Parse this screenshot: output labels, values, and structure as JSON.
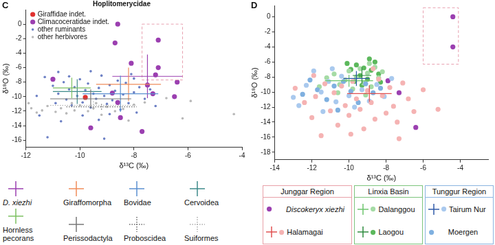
{
  "chart_data": [
    {
      "type": "scatter",
      "panel_label": "C",
      "title": "Hoplitomerycidae",
      "x_label": "δ¹³C (‰)",
      "y_label": "δ¹⁸O (‰)",
      "xlim": [
        -12,
        -4
      ],
      "xticks": [
        -12,
        -10,
        -8,
        -6,
        -4
      ],
      "ylim": [
        -17,
        2
      ],
      "yticks": [
        -16,
        -14,
        -12,
        -10,
        -8,
        -6,
        -4,
        -2,
        0
      ],
      "grid": false,
      "legend": "top left",
      "series": [
        {
          "name": "Giraffidae indet.",
          "color": "#e0312f",
          "marker": "circle",
          "points": [
            [
              -9.8,
              -10.1
            ]
          ]
        },
        {
          "name": "Climacoceratidae indet.",
          "color": "#9b3fb0",
          "marker": "circle",
          "points": [
            [
              -8.6,
              0.0
            ],
            [
              -8.7,
              -2.6
            ],
            [
              -8.1,
              -5.4
            ],
            [
              -7.1,
              -2.2
            ],
            [
              -7.1,
              -6.0
            ],
            [
              -7.5,
              -8.4
            ],
            [
              -7.3,
              -9.6
            ],
            [
              -6.4,
              -8.0
            ],
            [
              -6.5,
              -10.0
            ],
            [
              -7.7,
              -14.8
            ],
            [
              -8.5,
              -12.9
            ],
            [
              -9.6,
              -14.3
            ],
            [
              -11.0,
              -7.6
            ],
            [
              -8.8,
              -9.5
            ],
            [
              -8.6,
              -10.8
            ],
            [
              -7.2,
              -7.0
            ]
          ]
        },
        {
          "name": "other ruminants",
          "color": "#6b7fc4",
          "marker": "dot",
          "points": [
            [
              -11.3,
              -7.3
            ],
            [
              -11.0,
              -8.5
            ],
            [
              -10.8,
              -9.6
            ],
            [
              -10.6,
              -8.0
            ],
            [
              -10.5,
              -10.4
            ],
            [
              -10.4,
              -9.0
            ],
            [
              -10.3,
              -11.2
            ],
            [
              -10.2,
              -8.7
            ],
            [
              -10.1,
              -9.9
            ],
            [
              -10.0,
              -7.6
            ],
            [
              -9.9,
              -10.8
            ],
            [
              -9.8,
              -9.1
            ],
            [
              -9.7,
              -8.2
            ],
            [
              -9.6,
              -11.5
            ],
            [
              -9.5,
              -9.6
            ],
            [
              -9.4,
              -10.3
            ],
            [
              -9.3,
              -8.8
            ],
            [
              -9.2,
              -7.1
            ],
            [
              -9.1,
              -9.9
            ],
            [
              -9.0,
              -11.0
            ],
            [
              -8.9,
              -8.4
            ],
            [
              -8.8,
              -10.5
            ],
            [
              -8.7,
              -9.2
            ],
            [
              -8.6,
              -7.8
            ],
            [
              -8.5,
              -11.8
            ],
            [
              -8.4,
              -9.7
            ],
            [
              -8.3,
              -8.1
            ],
            [
              -8.2,
              -10.9
            ],
            [
              -8.1,
              -6.9
            ],
            [
              -8.0,
              -9.4
            ],
            [
              -7.9,
              -12.2
            ],
            [
              -7.8,
              -8.7
            ],
            [
              -7.6,
              -10.3
            ],
            [
              -7.4,
              -9.0
            ],
            [
              -7.2,
              -11.3
            ],
            [
              -10.9,
              -10.9
            ],
            [
              -11.5,
              -12.6
            ],
            [
              -10.7,
              -13.4
            ],
            [
              -9.9,
              -12.6
            ],
            [
              -9.3,
              -13.2
            ],
            [
              -11.6,
              -9.9
            ],
            [
              -10.4,
              -7.2
            ],
            [
              -9.6,
              -6.5
            ],
            [
              -8.9,
              -12.4
            ],
            [
              -8.0,
              -7.5
            ],
            [
              -11.2,
              -15.6
            ],
            [
              -10.8,
              -6.6
            ],
            [
              -9.1,
              -15.8
            ]
          ]
        },
        {
          "name": "other herbivores",
          "color": "#b8b8b8",
          "marker": "dot",
          "points": [
            [
              -11.8,
              -11.6
            ],
            [
              -11.6,
              -12.2
            ],
            [
              -11.4,
              -11.9
            ],
            [
              -11.2,
              -11.3
            ],
            [
              -10.9,
              -12.1
            ],
            [
              -10.7,
              -11.6
            ],
            [
              -10.5,
              -12.3
            ],
            [
              -10.2,
              -11.9
            ],
            [
              -10.0,
              -11.2
            ],
            [
              -9.7,
              -12.0
            ],
            [
              -9.5,
              -11.6
            ],
            [
              -9.2,
              -12.5
            ],
            [
              -9.0,
              -11.4
            ],
            [
              -8.7,
              -12.0
            ],
            [
              -8.4,
              -11.7
            ],
            [
              -8.0,
              -11.1
            ],
            [
              -7.6,
              -10.8
            ],
            [
              -6.8,
              -10.2
            ],
            [
              -5.9,
              -10.6
            ],
            [
              -4.3,
              -12.4
            ],
            [
              -6.2,
              -13.0
            ],
            [
              -11.9,
              -10.9
            ],
            [
              -10.3,
              -10.9
            ],
            [
              -9.4,
              -10.9
            ],
            [
              -8.2,
              -13.3
            ]
          ]
        }
      ],
      "crosses": [
        {
          "name": "D. xiezhi",
          "color": "#9b3fb0",
          "line_style": "solid",
          "x": -7.5,
          "y": -7.2,
          "xerr": 1.3,
          "yerr": 3.0
        },
        {
          "name": "Giraffomorpha",
          "color": "#f08c5a",
          "line_style": "solid",
          "x": -8.2,
          "y": -8.3,
          "xerr": 1.2,
          "yerr": 2.3
        },
        {
          "name": "Bovidae",
          "color": "#5a8fd0",
          "line_style": "solid",
          "x": -8.5,
          "y": -9.6,
          "xerr": 1.4,
          "yerr": 2.5
        },
        {
          "name": "Cervoidea",
          "color": "#3e8a8a",
          "line_style": "solid",
          "x": -10.1,
          "y": -9.3,
          "xerr": 0.9,
          "yerr": 1.7
        },
        {
          "name": "Hornless pecorans",
          "color": "#7cc060",
          "line_style": "solid",
          "x": -10.3,
          "y": -8.8,
          "xerr": 0.7,
          "yerr": 1.4
        },
        {
          "name": "Perissodactyla",
          "color": "#777777",
          "line_style": "solid",
          "x": -9.6,
          "y": -10.3,
          "xerr": 1.5,
          "yerr": 1.3
        },
        {
          "name": "Proboscidea",
          "color": "#666666",
          "line_style": "dotted",
          "x": -9.2,
          "y": -11.4,
          "xerr": 1.3,
          "yerr": 0.4
        },
        {
          "name": "Suiformes",
          "color": "#aaaaaa",
          "line_style": "dotted",
          "x": -9.5,
          "y": -11.2,
          "xerr": 1.6,
          "yerr": 0.6
        }
      ],
      "highlight_box": {
        "xlim": [
          -7.7,
          -6.2
        ],
        "ylim": [
          -7.7,
          0.0
        ],
        "color": "#e8a0b0",
        "line_style": "dashed"
      }
    },
    {
      "type": "scatter",
      "panel_label": "D",
      "x_label": "δ¹³C (‰)",
      "y_label": "δ¹⁸O (‰)",
      "xlim": [
        -14,
        -2.5
      ],
      "xticks": [
        -14,
        -12,
        -10,
        -8,
        -6,
        -4
      ],
      "ylim": [
        -19,
        1.5
      ],
      "yticks": [
        -18,
        -16,
        -14,
        -12,
        -10,
        -8,
        -6,
        -4,
        -2,
        0
      ],
      "grid": false,
      "series": [
        {
          "name": "Halamagai",
          "color": "#f5b3b3",
          "marker": "circle",
          "points": [
            [
              -12.9,
              -9.5
            ],
            [
              -12.4,
              -11.4
            ],
            [
              -12.0,
              -13.4
            ],
            [
              -11.8,
              -10.6
            ],
            [
              -11.5,
              -15.8
            ],
            [
              -11.3,
              -8.9
            ],
            [
              -11.0,
              -12.5
            ],
            [
              -10.8,
              -10.1
            ],
            [
              -10.6,
              -14.4
            ],
            [
              -10.4,
              -9.2
            ],
            [
              -10.2,
              -11.8
            ],
            [
              -10.0,
              -13.1
            ],
            [
              -9.8,
              -8.6
            ],
            [
              -9.6,
              -10.9
            ],
            [
              -9.4,
              -12.3
            ],
            [
              -9.2,
              -14.9
            ],
            [
              -9.0,
              -9.8
            ],
            [
              -8.8,
              -11.4
            ],
            [
              -8.6,
              -13.6
            ],
            [
              -8.4,
              -8.3
            ],
            [
              -8.2,
              -10.5
            ],
            [
              -8.0,
              -12.8
            ],
            [
              -7.8,
              -9.4
            ],
            [
              -7.6,
              -11.9
            ],
            [
              -7.4,
              -14.0
            ],
            [
              -7.1,
              -8.8
            ],
            [
              -6.8,
              -10.9
            ],
            [
              -6.5,
              -12.6
            ],
            [
              -6.0,
              -9.7
            ],
            [
              -5.2,
              -12.3
            ],
            [
              -9.9,
              -15.6
            ],
            [
              -11.9,
              -7.8
            ],
            [
              -8.7,
              -6.9
            ],
            [
              -7.3,
              -16.2
            ]
          ]
        },
        {
          "name": "Tairum Nur",
          "color": "#a9c9ee",
          "marker": "circle",
          "points": [
            [
              -13.0,
              -10.7
            ],
            [
              -12.3,
              -9.1
            ],
            [
              -11.9,
              -7.2
            ],
            [
              -11.5,
              -10.0
            ],
            [
              -11.1,
              -8.6
            ],
            [
              -10.7,
              -11.3
            ],
            [
              -10.4,
              -7.9
            ],
            [
              -10.0,
              -10.5
            ],
            [
              -9.7,
              -12.0
            ],
            [
              -9.3,
              -9.7
            ],
            [
              -8.9,
              -11.2
            ],
            [
              -8.5,
              -9.0
            ],
            [
              -8.1,
              -10.6
            ],
            [
              -7.7,
              -8.2
            ],
            [
              -11.4,
              -12.6
            ],
            [
              -12.7,
              -11.8
            ],
            [
              -10.9,
              -6.9
            ]
          ]
        },
        {
          "name": "Moergen",
          "color": "#7fb0e0",
          "marker": "circle",
          "points": [
            [
              -12.1,
              -8.4
            ],
            [
              -11.7,
              -9.7
            ],
            [
              -11.2,
              -11.0
            ],
            [
              -10.8,
              -9.2
            ],
            [
              -10.3,
              -8.6
            ],
            [
              -9.9,
              -9.9
            ],
            [
              -9.5,
              -11.4
            ],
            [
              -9.1,
              -8.9
            ],
            [
              -8.7,
              -10.1
            ],
            [
              -8.3,
              -9.5
            ],
            [
              -10.6,
              -12.4
            ],
            [
              -12.5,
              -10.3
            ]
          ]
        },
        {
          "name": "Dalanggou",
          "color": "#a5dba5",
          "marker": "circle",
          "points": [
            [
              -11.2,
              -8.1
            ],
            [
              -10.8,
              -7.6
            ],
            [
              -10.5,
              -9.0
            ],
            [
              -10.2,
              -8.4
            ],
            [
              -10.0,
              -7.2
            ],
            [
              -9.8,
              -9.6
            ],
            [
              -9.6,
              -8.0
            ],
            [
              -9.4,
              -6.9
            ],
            [
              -9.2,
              -8.8
            ],
            [
              -9.0,
              -7.5
            ],
            [
              -8.8,
              -9.3
            ],
            [
              -8.6,
              -6.7
            ],
            [
              -8.4,
              -8.1
            ],
            [
              -8.2,
              -7.3
            ],
            [
              -10.6,
              -10.1
            ],
            [
              -9.1,
              -10.4
            ],
            [
              -11.6,
              -9.3
            ],
            [
              -8.9,
              -6.2
            ]
          ]
        },
        {
          "name": "Laogou",
          "color": "#5cb85c",
          "marker": "circle",
          "points": [
            [
              -9.9,
              -7.0
            ],
            [
              -9.6,
              -6.4
            ],
            [
              -9.4,
              -7.8
            ],
            [
              -9.2,
              -6.8
            ],
            [
              -9.0,
              -8.3
            ],
            [
              -8.8,
              -7.1
            ],
            [
              -8.6,
              -6.0
            ],
            [
              -8.4,
              -7.6
            ],
            [
              -9.3,
              -9.1
            ],
            [
              -8.9,
              -5.6
            ],
            [
              -8.3,
              -8.7
            ],
            [
              -9.7,
              -8.6
            ],
            [
              -10.1,
              -6.2
            ]
          ]
        },
        {
          "name": "Discokeryx xiezhi",
          "color": "#9b3fb0",
          "marker": "circle",
          "points": [
            [
              -4.4,
              0.0
            ],
            [
              -4.4,
              -4.0
            ],
            [
              -7.3,
              -10.1
            ],
            [
              -6.4,
              -14.7
            ],
            [
              -7.9,
              -8.5
            ]
          ]
        }
      ],
      "crosses": [
        {
          "name": "Halamagai",
          "color": "#e05050",
          "line_style": "solid",
          "x": -8.9,
          "y": -10.2,
          "xerr": 1.2,
          "yerr": 1.1
        },
        {
          "name": "Dalanggou",
          "color": "#6cc46c",
          "line_style": "solid",
          "x": -10.0,
          "y": -8.5,
          "xerr": 1.3,
          "yerr": 0.8
        },
        {
          "name": "Laogou",
          "color": "#2e8b3e",
          "line_style": "solid",
          "x": -9.3,
          "y": -7.8,
          "xerr": 0.5,
          "yerr": 1.1
        },
        {
          "name": "Tairum Nur",
          "color": "#2f5aa8",
          "line_style": "solid",
          "x": -9.6,
          "y": -8.2,
          "xerr": 0.7,
          "yerr": 1.0
        }
      ],
      "highlight_box": {
        "xlim": [
          -6.0,
          -4.1
        ],
        "ylim": [
          -6.3,
          1.2
        ],
        "color": "#e8a0b0",
        "line_style": "dashed"
      },
      "legend_groups": [
        {
          "name": "Junggar Region",
          "color": "#e8a0a8",
          "members": [
            "Discokeryx xiezhi",
            "Halamagai"
          ]
        },
        {
          "name": "Linxia Basin",
          "color": "#7cc47c",
          "members": [
            "Dalanggou",
            "Laogou"
          ]
        },
        {
          "name": "Tunggur Region",
          "color": "#8ab4e0",
          "members": [
            "Tairum Nur",
            "Moergen"
          ]
        }
      ]
    }
  ]
}
